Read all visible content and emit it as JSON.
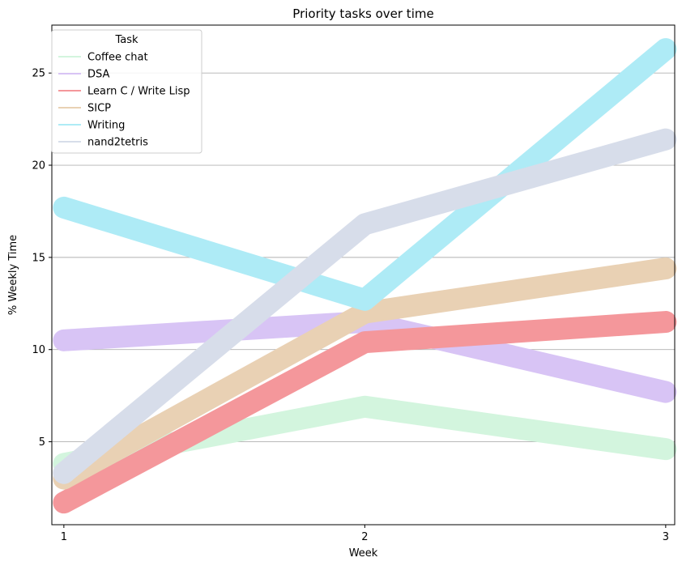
{
  "chart_data": {
    "type": "line",
    "title": "Priority tasks over time",
    "xlabel": "Week",
    "ylabel": "% Weekly Time",
    "x": [
      1,
      2,
      3
    ],
    "x_ticks": [
      "1",
      "2",
      "3"
    ],
    "y_ticks": [
      "5",
      "10",
      "15",
      "20",
      "25"
    ],
    "xlim": [
      0.96,
      3.03
    ],
    "ylim": [
      0.5,
      27.6
    ],
    "grid": "horizontal",
    "legend": {
      "title": "Task",
      "placement": "top-left"
    },
    "series": [
      {
        "name": "Coffee chat",
        "values": [
          3.8,
          6.9,
          4.6
        ],
        "color": "#d3f5de"
      },
      {
        "name": "DSA",
        "values": [
          10.5,
          11.5,
          7.7
        ],
        "color": "#d8c4f5"
      },
      {
        "name": "Learn C / Write Lisp",
        "values": [
          1.7,
          10.4,
          11.5
        ],
        "color": "#f4979b"
      },
      {
        "name": "SICP",
        "values": [
          3.0,
          12.0,
          14.4
        ],
        "color": "#e9d1b4"
      },
      {
        "name": "Writing",
        "values": [
          17.7,
          12.7,
          26.3
        ],
        "color": "#aeebf6"
      },
      {
        "name": "nand2tetris",
        "values": [
          3.3,
          16.8,
          21.4
        ],
        "color": "#d7ddea"
      }
    ]
  }
}
